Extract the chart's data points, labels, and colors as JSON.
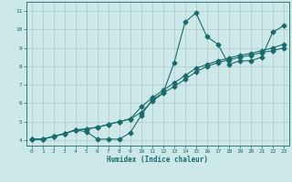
{
  "xlabel": "Humidex (Indice chaleur)",
  "ylabel": "",
  "bg_color": "#cce8e8",
  "line_color": "#1a6b6b",
  "grid_color": "#b0c8c8",
  "xlim": [
    -0.5,
    23.5
  ],
  "ylim": [
    3.7,
    11.5
  ],
  "xticks": [
    0,
    1,
    2,
    3,
    4,
    5,
    6,
    7,
    8,
    9,
    10,
    11,
    12,
    13,
    14,
    15,
    16,
    17,
    18,
    19,
    20,
    21,
    22,
    23
  ],
  "yticks": [
    4,
    5,
    6,
    7,
    8,
    9,
    10,
    11
  ],
  "series1_x": [
    0,
    1,
    2,
    3,
    4,
    5,
    6,
    7,
    8,
    9,
    10,
    11,
    12,
    13,
    14,
    15,
    16,
    17,
    18,
    19,
    20,
    21,
    22,
    23
  ],
  "series1_y": [
    4.05,
    4.05,
    4.2,
    4.35,
    4.55,
    4.45,
    4.05,
    4.05,
    4.05,
    4.4,
    5.35,
    6.2,
    6.55,
    8.2,
    10.4,
    10.9,
    9.6,
    9.2,
    8.1,
    8.3,
    8.3,
    8.5,
    9.85,
    10.2
  ],
  "series2_x": [
    0,
    1,
    2,
    3,
    4,
    5,
    6,
    7,
    8,
    9,
    10,
    11,
    12,
    13,
    14,
    15,
    16,
    17,
    18,
    19,
    20,
    21,
    22,
    23
  ],
  "series2_y": [
    4.05,
    4.05,
    4.2,
    4.35,
    4.55,
    4.6,
    4.7,
    4.85,
    5.0,
    5.15,
    5.5,
    6.1,
    6.55,
    6.9,
    7.3,
    7.7,
    8.0,
    8.2,
    8.35,
    8.5,
    8.6,
    8.75,
    8.85,
    9.0
  ],
  "series3_x": [
    0,
    1,
    2,
    3,
    4,
    5,
    6,
    7,
    8,
    9,
    10,
    11,
    12,
    13,
    14,
    15,
    16,
    17,
    18,
    19,
    20,
    21,
    22,
    23
  ],
  "series3_y": [
    4.05,
    4.05,
    4.2,
    4.35,
    4.55,
    4.6,
    4.7,
    4.85,
    5.0,
    5.15,
    5.8,
    6.3,
    6.7,
    7.1,
    7.5,
    7.9,
    8.1,
    8.3,
    8.45,
    8.6,
    8.7,
    8.85,
    9.0,
    9.2
  ]
}
